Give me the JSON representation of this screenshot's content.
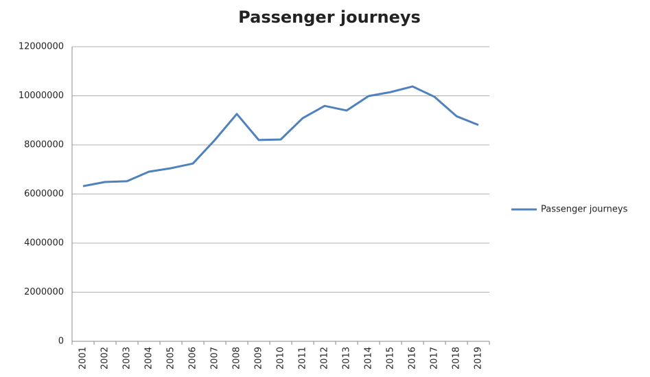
{
  "chart_data": {
    "type": "line",
    "title": "Passenger journeys",
    "categories": [
      "2001",
      "2002",
      "2003",
      "2004",
      "2005",
      "2006",
      "2007",
      "2008",
      "2009",
      "2010",
      "2011",
      "2012",
      "2013",
      "2014",
      "2015",
      "2016",
      "2017",
      "2018",
      "2019"
    ],
    "series": [
      {
        "name": "Passenger journeys",
        "color": "#4f81bd",
        "values": [
          6320000,
          6490000,
          6520000,
          6910000,
          7050000,
          7240000,
          8200000,
          9260000,
          8200000,
          8220000,
          9090000,
          9590000,
          9400000,
          9990000,
          10150000,
          10380000,
          9960000,
          9170000,
          8810000
        ]
      }
    ],
    "ylim": [
      0,
      12000000
    ],
    "yticks": [
      0,
      2000000,
      4000000,
      6000000,
      8000000,
      10000000,
      12000000
    ],
    "grid": true,
    "legend": "right"
  }
}
